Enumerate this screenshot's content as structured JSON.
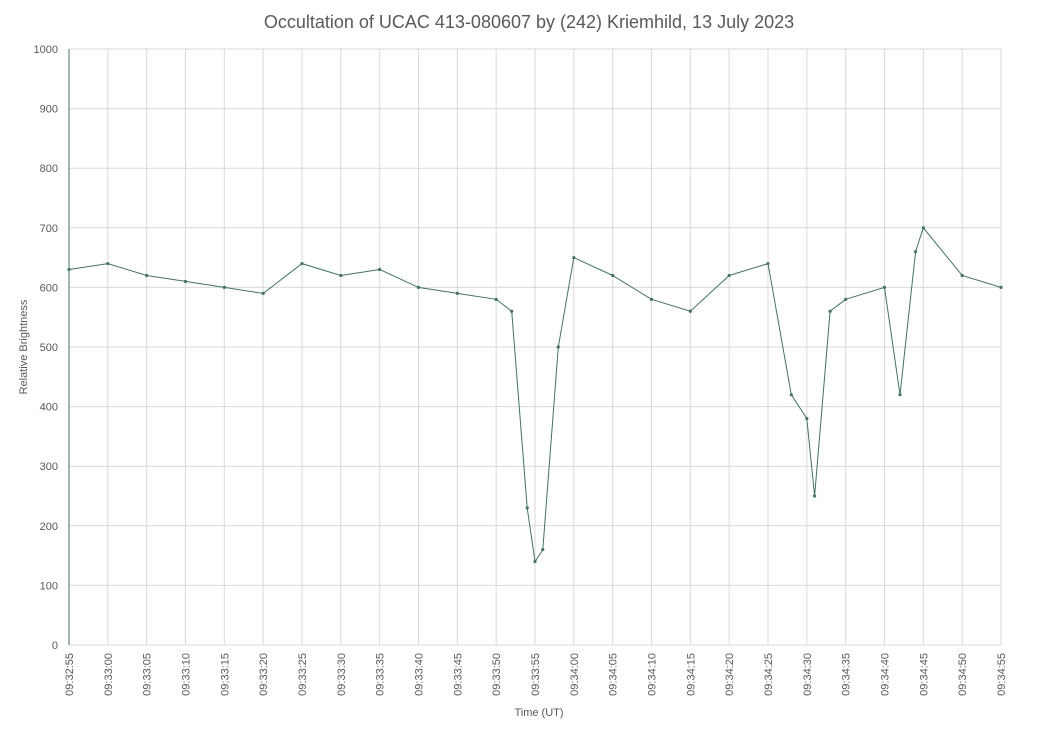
{
  "chart_data": {
    "type": "line",
    "title": "Occultation of UCAC 413-080607 by (242) Kriemhild, 13 July 2023",
    "xlabel": "Time (UT)",
    "ylabel": "Relative Brightness",
    "ylim": [
      0,
      1000
    ],
    "yticks": [
      0,
      100,
      200,
      300,
      400,
      500,
      600,
      700,
      800,
      900,
      1000
    ],
    "xlim": [
      "09:32:55",
      "09:34:55"
    ],
    "xticks": [
      "09:32:55",
      "09:33:00",
      "09:33:05",
      "09:33:10",
      "09:33:15",
      "09:33:20",
      "09:33:25",
      "09:33:30",
      "09:33:35",
      "09:33:40",
      "09:33:45",
      "09:33:50",
      "09:33:55",
      "09:34:00",
      "09:34:05",
      "09:34:10",
      "09:34:15",
      "09:34:20",
      "09:34:25",
      "09:34:30",
      "09:34:35",
      "09:34:40",
      "09:34:45",
      "09:34:50",
      "09:34:55"
    ],
    "grid": true,
    "legend": "none",
    "series_color": "#3f7562",
    "series": [
      {
        "x": [
          "09:32:55",
          "09:33:00",
          "09:33:05",
          "09:33:10",
          "09:33:15",
          "09:33:20",
          "09:33:25",
          "09:33:30",
          "09:33:35",
          "09:33:40",
          "09:33:45",
          "09:33:50",
          "09:33:52",
          "09:33:54",
          "09:33:55",
          "09:33:56",
          "09:33:58",
          "09:34:00",
          "09:34:05",
          "09:34:10",
          "09:34:15",
          "09:34:20",
          "09:34:25",
          "09:34:28",
          "09:34:30",
          "09:34:31",
          "09:34:33",
          "09:34:35",
          "09:34:40",
          "09:34:42",
          "09:34:44",
          "09:34:45",
          "09:34:50",
          "09:34:55"
        ],
        "values": [
          630,
          640,
          620,
          610,
          600,
          590,
          640,
          620,
          630,
          600,
          590,
          580,
          560,
          230,
          140,
          160,
          500,
          650,
          620,
          580,
          560,
          620,
          640,
          420,
          380,
          250,
          560,
          580,
          600,
          420,
          660,
          700,
          620,
          600
        ]
      }
    ]
  }
}
